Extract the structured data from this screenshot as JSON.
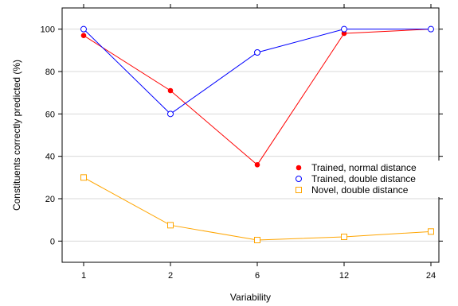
{
  "chart_data": {
    "type": "line",
    "title": "",
    "xlabel": "Variability",
    "ylabel": "Constituents correctly predicted (%)",
    "categories": [
      "1",
      "2",
      "6",
      "12",
      "24"
    ],
    "ylim": [
      -10,
      110
    ],
    "yticks": [
      0,
      20,
      40,
      60,
      80,
      100
    ],
    "grid": true,
    "legend_position": "right",
    "series": [
      {
        "name": "Trained, normal distance",
        "color": "#ff0000",
        "marker": "filled-circle",
        "values": [
          97,
          71,
          36,
          98,
          100
        ]
      },
      {
        "name": "Trained, double distance",
        "color": "#0000ff",
        "marker": "open-circle",
        "values": [
          100,
          60,
          89,
          100,
          100
        ]
      },
      {
        "name": "Novel, double distance",
        "color": "#ffa500",
        "marker": "open-square",
        "values": [
          30,
          7.5,
          0.5,
          2,
          4.5
        ]
      }
    ]
  }
}
